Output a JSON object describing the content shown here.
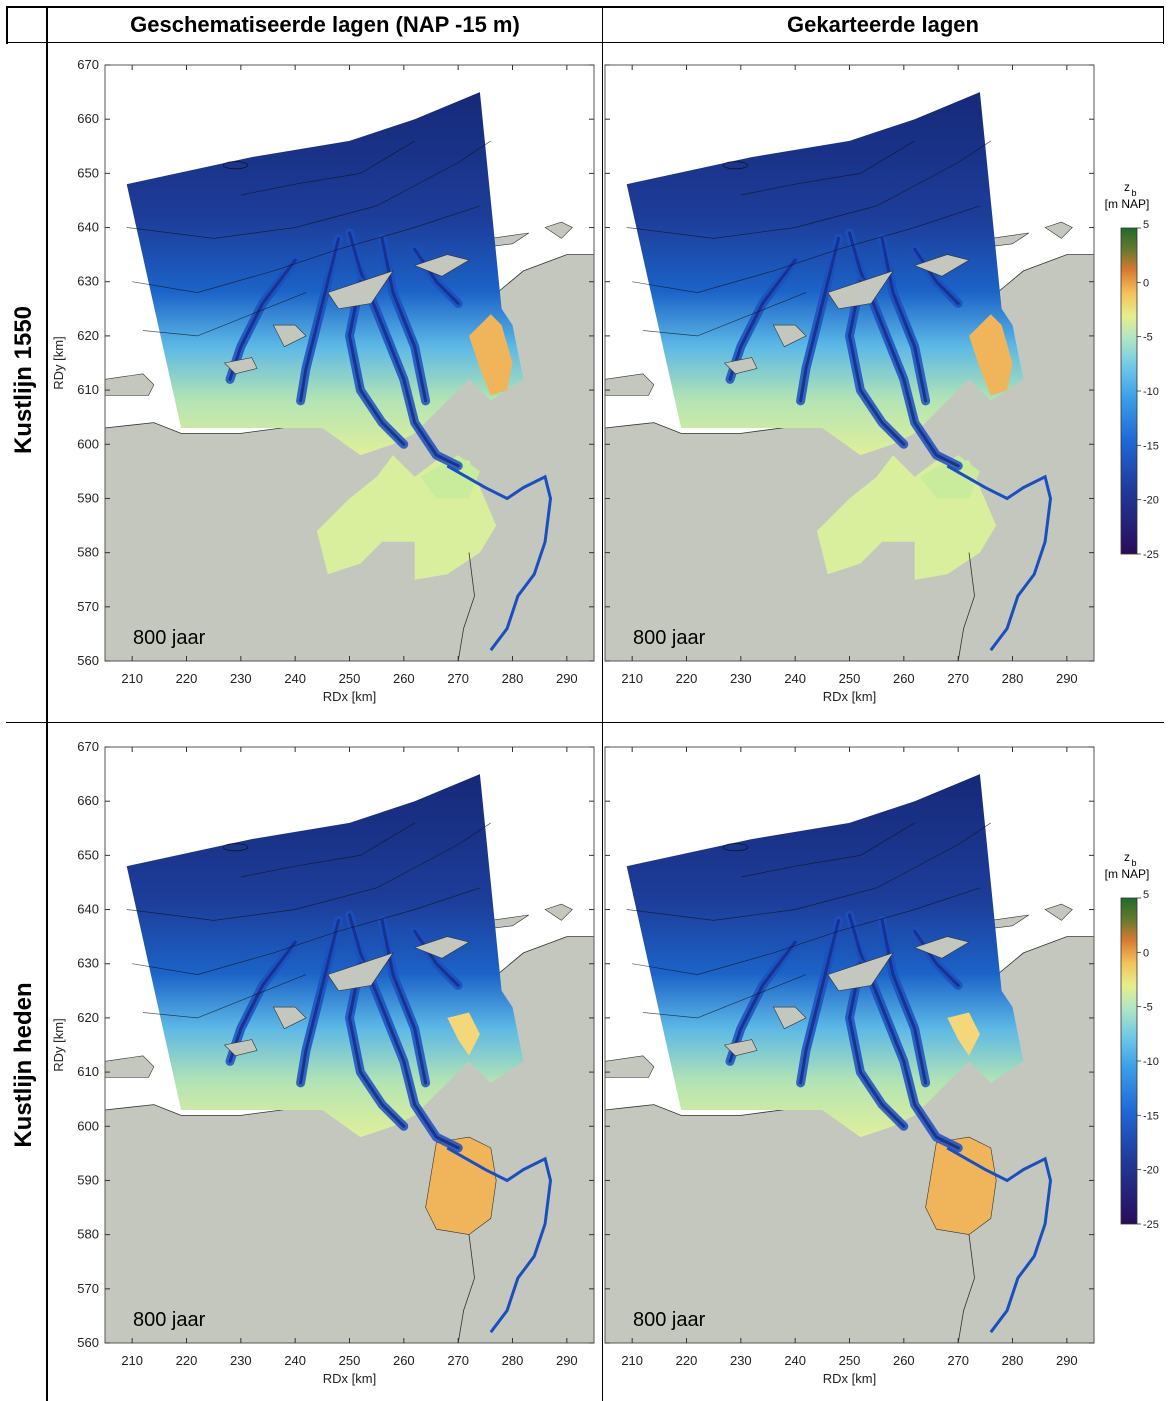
{
  "headers": {
    "col1": "Geschematiseerde lagen (NAP -15 m)",
    "col2": "Gekarteerde lagen"
  },
  "rows": {
    "row1": "Kustlijn 1550",
    "row2": "Kustlijn heden"
  },
  "axes": {
    "xlabel": "RDx [km]",
    "ylabel": "RDy [km]",
    "xticks": [
      "210",
      "220",
      "230",
      "240",
      "250",
      "260",
      "270",
      "280",
      "290"
    ],
    "yticks": [
      "670",
      "660",
      "650",
      "640",
      "630",
      "620",
      "610",
      "600",
      "590",
      "580",
      "570",
      "560"
    ]
  },
  "panel_label": "800 jaar",
  "colorbar": {
    "title": "z",
    "subscript": "b",
    "unit": "[m NAP]",
    "ticks": [
      "5",
      "0",
      "-5",
      "-10",
      "-15",
      "-20",
      "-25"
    ]
  },
  "colors": {
    "land": "#c3c7bd",
    "deep": "#1a2f86",
    "mid": "#1c63c8",
    "shallow": "#6fc6df",
    "flat": "#d8ef9c",
    "high": "#f0b55a",
    "veryhigh": "#d27a34"
  },
  "panels": [
    {
      "id": "p1",
      "variant": "schematised-1550"
    },
    {
      "id": "p2",
      "variant": "mapped-1550"
    },
    {
      "id": "p3",
      "variant": "schematised-present"
    },
    {
      "id": "p4",
      "variant": "mapped-present"
    }
  ]
}
